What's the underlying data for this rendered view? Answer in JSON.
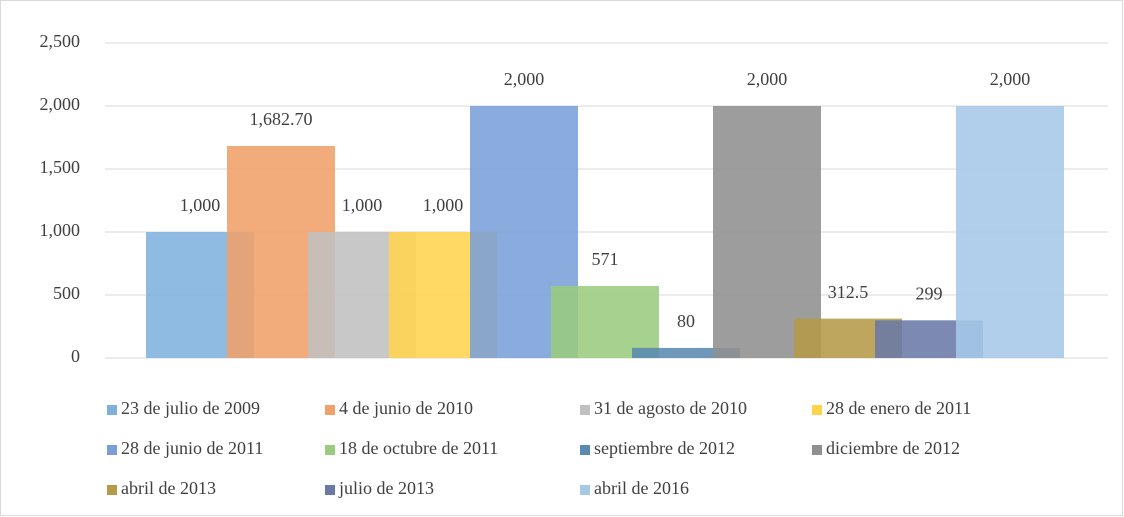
{
  "chart_data": {
    "type": "bar",
    "series": [
      {
        "name": "23 de julio de 2009",
        "color": "#7fb0de",
        "values": [
          1000
        ],
        "value_labels": [
          "1,000"
        ]
      },
      {
        "name": "4 de junio de 2010",
        "color": "#f0a06a",
        "values": [
          1682.7
        ],
        "value_labels": [
          "1,682.70"
        ]
      },
      {
        "name": "31 de agosto de 2010",
        "color": "#c0c0c0",
        "values": [
          1000
        ],
        "value_labels": [
          "1,000"
        ]
      },
      {
        "name": "28 de enero de 2011",
        "color": "#ffd44d",
        "values": [
          1000
        ],
        "value_labels": [
          "1,000"
        ]
      },
      {
        "name": "28 de junio de 2011",
        "color": "#7a9fd8",
        "values": [
          2000
        ],
        "value_labels": [
          "2,000"
        ]
      },
      {
        "name": "18 de octubre de 2011",
        "color": "#9acb7e",
        "values": [
          571
        ]
      },
      {
        "name": "septiembre de 2012",
        "color": "#5a8ab0",
        "values": [
          80
        ]
      },
      {
        "name": "diciembre de 2012",
        "color": "#909090",
        "values": [
          2000
        ],
        "value_labels": [
          "2,000"
        ]
      },
      {
        "name": "abril de 2013",
        "color": "#b59a48",
        "values": [
          312.5
        ]
      },
      {
        "name": "julio de 2013",
        "color": "#6a7aa6",
        "values": [
          299
        ]
      },
      {
        "name": "abril de 2016",
        "color": "#a6c8e8",
        "values": [
          2000
        ],
        "value_labels": [
          "2,000"
        ]
      }
    ],
    "ylim": [
      0,
      2500
    ],
    "yticks": [
      0,
      {
        "value": 500,
        "label": "500"
      },
      {
        "value": 1000,
        "label": "1,000"
      },
      {
        "value": 1500,
        "label": "1,500"
      },
      {
        "value": 2000,
        "label": "2,000"
      },
      {
        "value": 2500,
        "label": "2,500"
      }
    ],
    "grid": true
  }
}
